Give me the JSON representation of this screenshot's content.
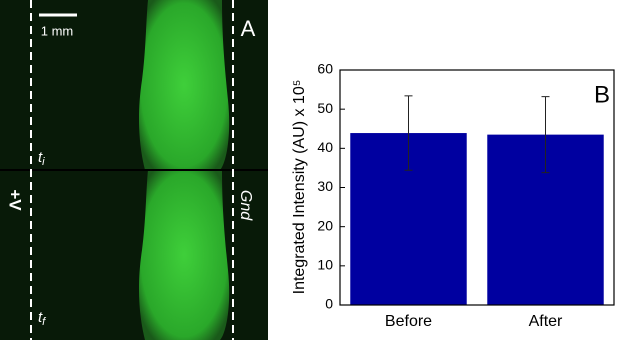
{
  "image_panel": {
    "panel_label": "A",
    "scale_bar": "1 mm",
    "time_start": {
      "symbol": "t",
      "subscript": "i"
    },
    "time_end": {
      "symbol": "t",
      "subscript": "f"
    },
    "left_electrode": "+V",
    "right_electrode": "Gnd"
  },
  "chart_data": {
    "type": "bar",
    "panel_label": "B",
    "ylabel": "Integrated Intensity (AU) x 10⁵",
    "categories": [
      "Before",
      "After"
    ],
    "values": [
      43.9,
      43.5
    ],
    "errors": [
      9.5,
      9.7
    ],
    "color": "#0000a0",
    "ylim": [
      0,
      60
    ],
    "yticks": [
      0,
      10,
      20,
      30,
      40,
      50,
      60
    ]
  }
}
